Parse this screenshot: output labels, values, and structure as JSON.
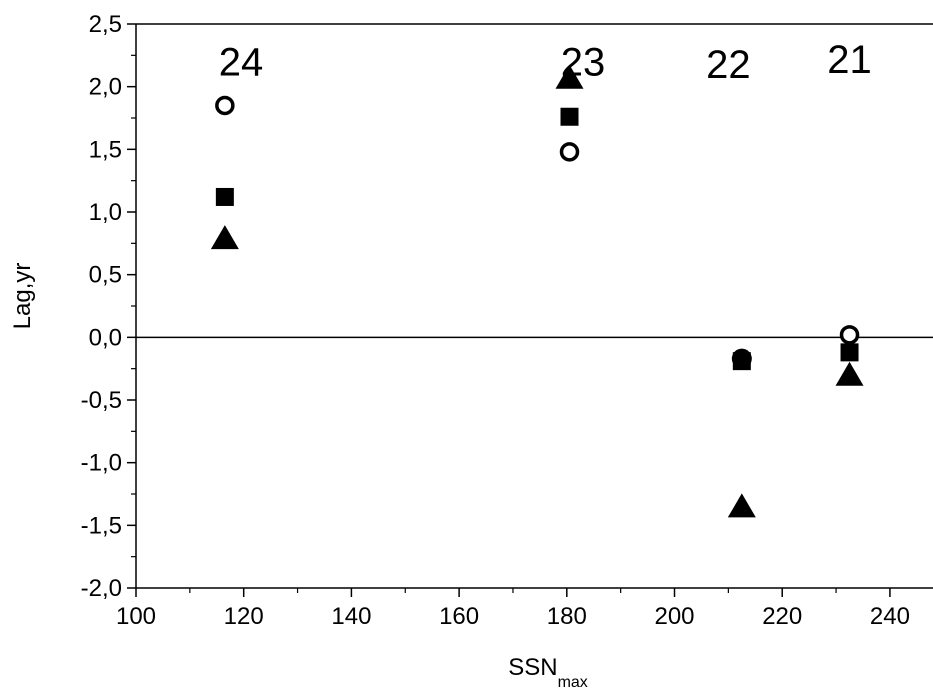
{
  "chart_data": {
    "type": "scatter",
    "title": "",
    "xlabel": "SSN",
    "xlabel_sub": "max",
    "ylabel": "Lag,yr",
    "xlim": [
      100,
      248
    ],
    "ylim": [
      -2.0,
      2.5
    ],
    "x_ticks": [
      100,
      120,
      140,
      160,
      180,
      200,
      220,
      240
    ],
    "x_tick_labels": [
      "100",
      "120",
      "140",
      "160",
      "180",
      "200",
      "220",
      "240"
    ],
    "y_ticks": [
      -2.0,
      -1.5,
      -1.0,
      -0.5,
      0.0,
      0.5,
      1.0,
      1.5,
      2.0,
      2.5
    ],
    "y_tick_labels": [
      "-2,0",
      "-1,5",
      "-1,0",
      "-0,5",
      "0,0",
      "0,5",
      "1,0",
      "1,5",
      "2,0",
      "2,5"
    ],
    "zero_line": true,
    "grid": false,
    "series": [
      {
        "marker": "circle-open",
        "x": [
          116.5,
          180.5,
          232.5
        ],
        "y": [
          1.85,
          1.48,
          0.02
        ]
      },
      {
        "marker": "square",
        "x": [
          116.5,
          180.5,
          212.5,
          232.5
        ],
        "y": [
          1.12,
          1.76,
          -0.19,
          -0.12
        ]
      },
      {
        "marker": "triangle",
        "x": [
          116.5,
          180.5,
          212.5,
          232.5
        ],
        "y": [
          0.78,
          2.06,
          -1.36,
          -0.31
        ]
      },
      {
        "marker": "circle-filled",
        "x": [
          212.5
        ],
        "y": [
          -0.17
        ]
      }
    ],
    "annotations": [
      {
        "text": "24",
        "x": 119.5,
        "y": 2.2
      },
      {
        "text": "23",
        "x": 183.0,
        "y": 2.2
      },
      {
        "text": "22",
        "x": 210.0,
        "y": 2.18
      },
      {
        "text": "21",
        "x": 232.5,
        "y": 2.22
      }
    ]
  }
}
